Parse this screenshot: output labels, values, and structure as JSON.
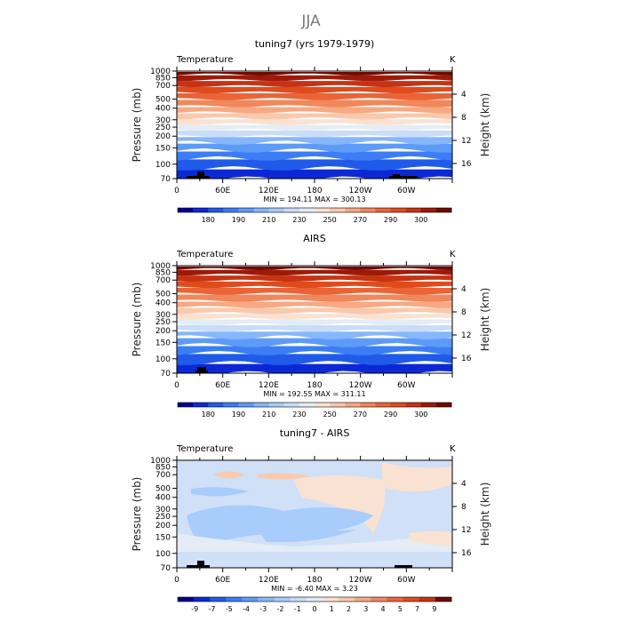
{
  "figure": {
    "season": "JJA",
    "units": "K",
    "left_axis_label": "Pressure (mb)",
    "right_axis_label": "Height (km)"
  },
  "chart_data": [
    {
      "type": "heatmap",
      "title": "tuning7 (yrs 1979-1979)",
      "variable": "Temperature",
      "units": "K",
      "xlabel": "",
      "ylabel": "Pressure (mb)",
      "y2label": "Height (km)",
      "x_tick_labels": [
        "0",
        "60E",
        "120E",
        "180",
        "120W",
        "60W"
      ],
      "y_ticks": [
        70,
        100,
        150,
        200,
        250,
        300,
        400,
        500,
        700,
        850,
        1000
      ],
      "y2_ticks": [
        4,
        8,
        12,
        16
      ],
      "ylim": [
        1000,
        70
      ],
      "y_scale": "log",
      "stats_text": "MIN = 194.11   MAX = 300.13",
      "min": 194.11,
      "max": 300.13,
      "colorbar_labels": [
        "180",
        "190",
        "210",
        "230",
        "250",
        "270",
        "290",
        "300"
      ],
      "colorbar_colors": [
        "#00008f",
        "#0c28d6",
        "#1f5ae8",
        "#3c7df5",
        "#5e9af8",
        "#86b6fb",
        "#a8ccfb",
        "#c9ddf9",
        "#e4ecf5",
        "#f9e2d2",
        "#fac9ad",
        "#f7a983",
        "#f1875c",
        "#ea6437",
        "#e04b1d",
        "#c63312",
        "#9e1a08",
        "#6e0a00"
      ],
      "field": "temperature-profile"
    },
    {
      "type": "heatmap",
      "title": "AIRS",
      "variable": "Temperature",
      "units": "K",
      "xlabel": "",
      "ylabel": "Pressure (mb)",
      "y2label": "Height (km)",
      "x_tick_labels": [
        "0",
        "60E",
        "120E",
        "180",
        "120W",
        "60W"
      ],
      "y_ticks": [
        70,
        100,
        150,
        200,
        250,
        300,
        400,
        500,
        700,
        850,
        1000
      ],
      "y2_ticks": [
        4,
        8,
        12,
        16
      ],
      "ylim": [
        1000,
        70
      ],
      "y_scale": "log",
      "stats_text": "MIN = 192.55   MAX = 311.11",
      "min": 192.55,
      "max": 311.11,
      "colorbar_labels": [
        "180",
        "190",
        "210",
        "230",
        "250",
        "270",
        "290",
        "300"
      ],
      "colorbar_colors": [
        "#00008f",
        "#0c28d6",
        "#1f5ae8",
        "#3c7df5",
        "#5e9af8",
        "#86b6fb",
        "#a8ccfb",
        "#c9ddf9",
        "#e4ecf5",
        "#f9e2d2",
        "#fac9ad",
        "#f7a983",
        "#f1875c",
        "#ea6437",
        "#e04b1d",
        "#c63312",
        "#9e1a08",
        "#6e0a00"
      ],
      "field": "temperature-profile"
    },
    {
      "type": "heatmap",
      "title": "tuning7 - AIRS",
      "variable": "Temperature",
      "units": "K",
      "xlabel": "",
      "ylabel": "Pressure (mb)",
      "y2label": "Height (km)",
      "x_tick_labels": [
        "0",
        "60E",
        "120E",
        "180",
        "120W",
        "60W"
      ],
      "y_ticks": [
        70,
        100,
        150,
        200,
        250,
        300,
        400,
        500,
        700,
        850,
        1000
      ],
      "y2_ticks": [
        4,
        8,
        12,
        16
      ],
      "ylim": [
        1000,
        70
      ],
      "y_scale": "log",
      "stats_text": "MIN =   -6.40   MAX =     3.23",
      "min": -6.4,
      "max": 3.23,
      "colorbar_labels": [
        "-9",
        "-7",
        "-5",
        "-4",
        "-3",
        "-2",
        "-1",
        "0",
        "1",
        "2",
        "3",
        "4",
        "5",
        "7",
        "9"
      ],
      "colorbar_colors": [
        "#00008f",
        "#0c28d6",
        "#1f5ae8",
        "#3c7df5",
        "#5e9af8",
        "#86b6fb",
        "#a8ccfb",
        "#c9ddf9",
        "#e4ecf5",
        "#f9e2d2",
        "#fac9ad",
        "#f7a983",
        "#f1875c",
        "#ea6437",
        "#e04b1d",
        "#c63312",
        "#6e0a00"
      ],
      "field": "difference"
    }
  ]
}
